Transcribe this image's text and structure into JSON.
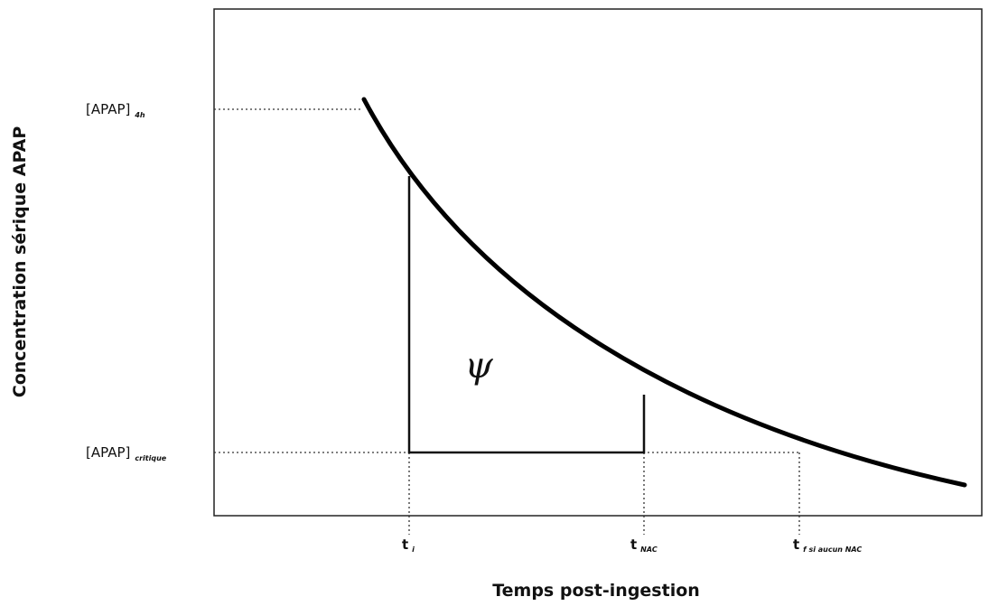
{
  "y_axis_label": "Concentration sérique APAP",
  "x_axis_label": "Temps post-ingestion",
  "y_markers": [
    {
      "label": "[APAP]",
      "subscript": "4h"
    },
    {
      "label": "[APAP]",
      "subscript": "critique"
    }
  ],
  "x_markers": [
    {
      "label": "t",
      "subscript": "i"
    },
    {
      "label": "t",
      "subscript": "NAC"
    },
    {
      "label": "t",
      "subscript": "f si aucun NAC"
    }
  ],
  "area_label": "ψ"
}
